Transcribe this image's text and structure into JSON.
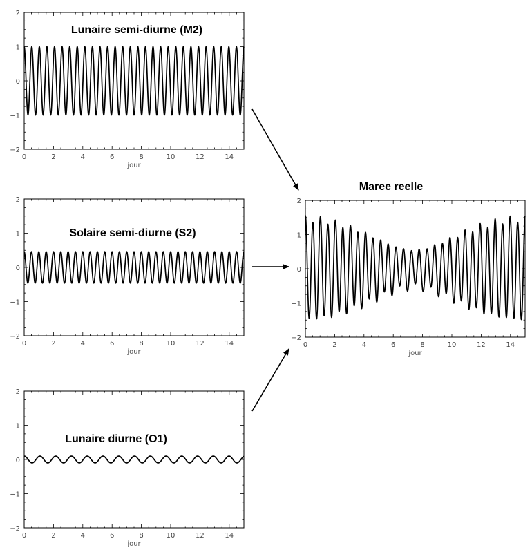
{
  "chart_data": [
    {
      "type": "line",
      "title": "Lunaire semi-diurne (M2)",
      "xlabel": "jour",
      "ylabel": "",
      "xlim": [
        0,
        15
      ],
      "ylim": [
        -2,
        2
      ],
      "xticks": [
        0,
        2,
        4,
        6,
        8,
        10,
        12,
        14
      ],
      "yticks": [
        -2,
        -1,
        0,
        1,
        2
      ],
      "series": [
        {
          "function": "cos",
          "amplitude": 1.0,
          "period_hours": 12.42
        }
      ]
    },
    {
      "type": "line",
      "title": "Solaire semi-diurne (S2)",
      "xlabel": "jour",
      "ylabel": "",
      "xlim": [
        0,
        15
      ],
      "ylim": [
        -2,
        2
      ],
      "xticks": [
        0,
        2,
        4,
        6,
        8,
        10,
        12,
        14
      ],
      "yticks": [
        -2,
        -1,
        0,
        1,
        2
      ],
      "series": [
        {
          "function": "cos",
          "amplitude": 0.46,
          "period_hours": 12.0
        }
      ]
    },
    {
      "type": "line",
      "title": "Lunaire diurne (O1)",
      "xlabel": "jour",
      "ylabel": "",
      "xlim": [
        0,
        15
      ],
      "ylim": [
        -2,
        2
      ],
      "xticks": [
        0,
        2,
        4,
        6,
        8,
        10,
        12,
        14
      ],
      "yticks": [
        -2,
        -1,
        0,
        1,
        2
      ],
      "series": [
        {
          "function": "cos",
          "amplitude": 0.1,
          "period_hours": 25.82
        }
      ]
    },
    {
      "type": "line",
      "title": "Maree reelle",
      "xlabel": "jour",
      "ylabel": "",
      "xlim": [
        0,
        15
      ],
      "ylim": [
        -2,
        2
      ],
      "xticks": [
        0,
        2,
        4,
        6,
        8,
        10,
        12,
        14
      ],
      "yticks": [
        -2,
        -1,
        0,
        1,
        2
      ],
      "series": [
        {
          "function": "sum",
          "components": [
            "M2",
            "S2",
            "O1"
          ]
        }
      ]
    }
  ]
}
